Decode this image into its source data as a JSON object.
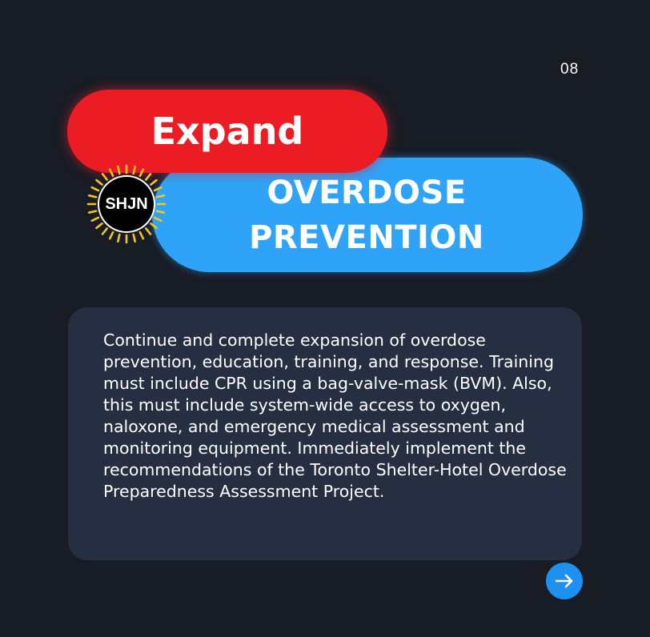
{
  "page_number": "08",
  "heading": {
    "primary": "Expand",
    "secondary_line1": "OVERDOSE",
    "secondary_line2": "PREVENTION"
  },
  "logo": {
    "text": "SHJN",
    "icon": "sunburst-logo-icon"
  },
  "body": {
    "text": "Continue and complete expansion of overdose prevention, education, training, and response. Training must include CPR using a bag-valve-mask (BVM). Also, this must include system-wide access to oxygen, naloxone, and emergency medical assessment and monitoring equipment. Immediately implement the recommendations of the Toronto Shelter-Hotel Overdose Preparedness Assessment Project."
  },
  "next_button": {
    "icon": "arrow-right-icon"
  },
  "colors": {
    "background": "#181c25",
    "red_accent": "#ec1c24",
    "blue_accent": "#2ea3f8",
    "card": "#262f41",
    "logo_rays": "#f5c518",
    "button": "#1e90f0"
  }
}
